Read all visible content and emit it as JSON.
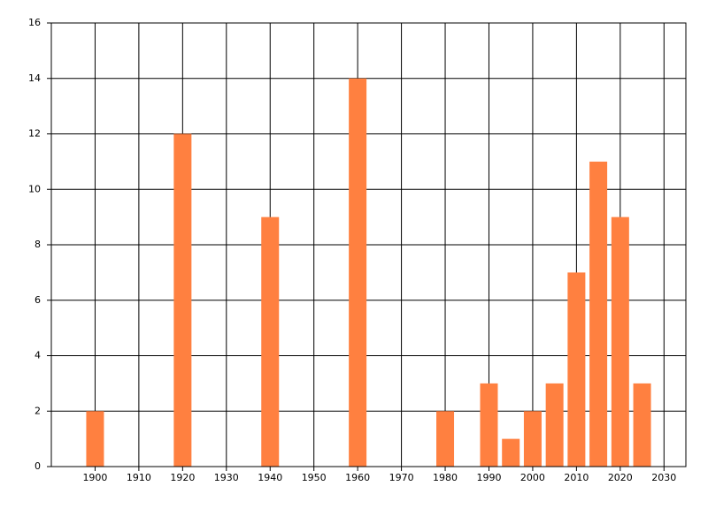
{
  "chart_data": {
    "type": "bar",
    "x": [
      1900,
      1920,
      1940,
      1960,
      1980,
      1990,
      1995,
      2000,
      2005,
      2010,
      2015,
      2020,
      2025
    ],
    "values": [
      2,
      12,
      9,
      14,
      2,
      3,
      1,
      2,
      3,
      7,
      11,
      9,
      3
    ],
    "color": "#ff8040",
    "xlim": [
      1890,
      2035
    ],
    "xticks": [
      1900,
      1910,
      1920,
      1930,
      1940,
      1950,
      1960,
      1970,
      1980,
      1990,
      2000,
      2010,
      2020,
      2030
    ],
    "ylim": [
      0,
      16
    ],
    "yticks": [
      0,
      2,
      4,
      6,
      8,
      10,
      12,
      14,
      16
    ],
    "grid": true
  }
}
